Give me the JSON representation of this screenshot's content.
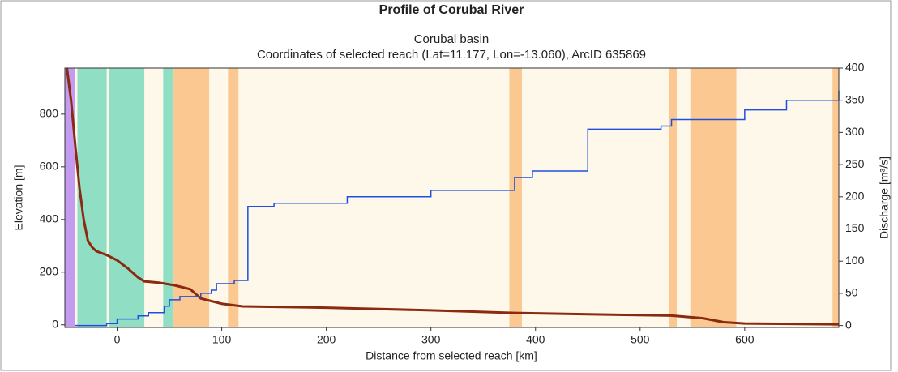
{
  "chart_data": {
    "type": "line",
    "title": "Profile of Corubal River",
    "subtitle": "Corubal basin",
    "subtitle2": "Coordinates of selected reach (Lat=11.177, Lon=-13.060), ArcID 635869",
    "xlabel": "Distance from selected reach [km]",
    "ylabel": "Elevation [m]",
    "y2label": "Discharge [m³/s]",
    "xlim": [
      -50,
      690
    ],
    "xticks": [
      0,
      100,
      200,
      300,
      400,
      500,
      600
    ],
    "ylim": [
      -10,
      975
    ],
    "yticks": [
      0,
      200,
      400,
      600,
      800
    ],
    "y2lim": [
      -3,
      400
    ],
    "y2ticks": [
      0,
      50,
      100,
      150,
      200,
      250,
      300,
      350,
      400
    ],
    "background": "#fdf8ea",
    "bands": [
      {
        "start": -50,
        "end": -40,
        "color": "#c39bf0"
      },
      {
        "start": -38,
        "end": -10,
        "color": "#90dfc5"
      },
      {
        "start": -8,
        "end": 26,
        "color": "#90dfc5"
      },
      {
        "start": 44,
        "end": 54,
        "color": "#90dfc5"
      },
      {
        "start": 54,
        "end": 88,
        "color": "#fac890"
      },
      {
        "start": 106,
        "end": 116,
        "color": "#fac890"
      },
      {
        "start": 375,
        "end": 387,
        "color": "#fac890"
      },
      {
        "start": 528,
        "end": 535,
        "color": "#fac890"
      },
      {
        "start": 548,
        "end": 592,
        "color": "#fac890"
      },
      {
        "start": 684,
        "end": 690,
        "color": "#fac890"
      }
    ],
    "series": [
      {
        "color": "#8b2a10",
        "axis": "y",
        "x": [
          -48,
          -44,
          -40,
          -36,
          -32,
          -28,
          -24,
          -20,
          -10,
          0,
          10,
          20,
          26,
          40,
          55,
          70,
          80,
          100,
          110,
          120,
          200,
          300,
          380,
          450,
          530,
          560,
          580,
          600,
          690
        ],
        "values": [
          975,
          850,
          680,
          520,
          400,
          320,
          295,
          280,
          265,
          245,
          215,
          180,
          165,
          160,
          150,
          135,
          100,
          80,
          75,
          70,
          65,
          55,
          45,
          40,
          35,
          25,
          10,
          5,
          2
        ]
      },
      {
        "color": "#1f4fe0",
        "axis": "y2",
        "step": "post",
        "x": [
          -40,
          -10,
          0,
          20,
          30,
          45,
          50,
          60,
          80,
          90,
          95,
          112,
          125,
          150,
          220,
          300,
          380,
          397,
          450,
          520,
          530,
          600,
          640,
          690
        ],
        "values": [
          0,
          3,
          10,
          15,
          20,
          30,
          40,
          45,
          50,
          55,
          65,
          70,
          185,
          190,
          200,
          210,
          230,
          240,
          305,
          310,
          320,
          335,
          350,
          365
        ]
      }
    ]
  }
}
